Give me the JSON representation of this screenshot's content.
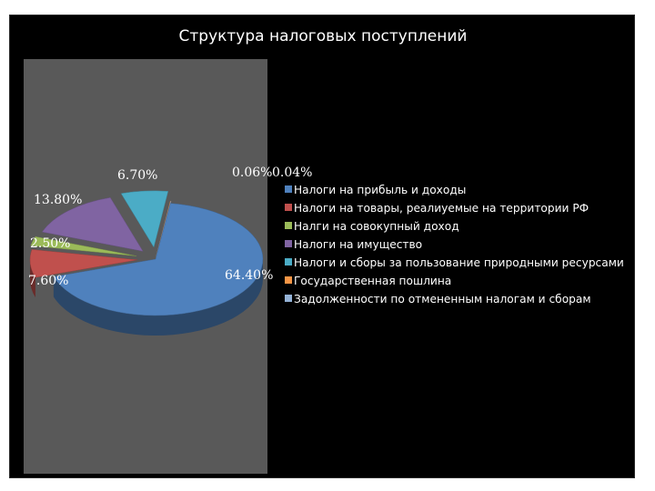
{
  "chart_data": {
    "type": "pie",
    "title": "Структура налоговых поступлений",
    "legend_position": "right",
    "categories": [
      "Налоги на прибыль и доходы",
      "Налоги на товары, реалиуемые на территории РФ",
      "Налги на совокупный доход",
      "Налоги на имущество",
      "Налоги и сборы за пользование природными ресурсами",
      "Государственная пошлина",
      "Задолженности по отмененным налогам и сборам"
    ],
    "values": [
      64.4,
      7.6,
      2.5,
      13.8,
      6.7,
      0.06,
      0.04
    ],
    "labels": [
      "64.40%",
      "7.60%",
      "2.50%",
      "13.80%",
      "6.70%",
      "0.06%",
      "0.04%"
    ],
    "colors": [
      "#4F81BD",
      "#C0504D",
      "#9BBB59",
      "#8064A2",
      "#4BACC6",
      "#F79646",
      "#95B3D7"
    ]
  }
}
